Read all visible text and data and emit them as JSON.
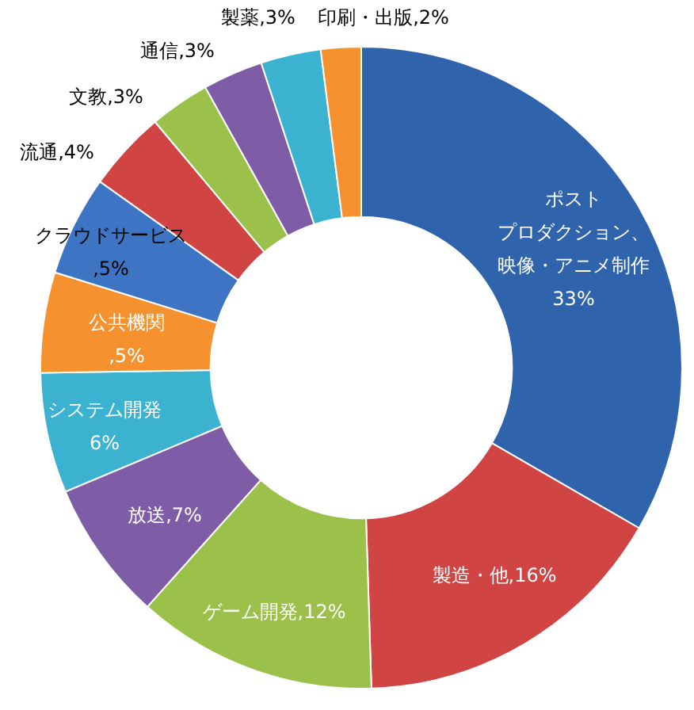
{
  "chart_data": {
    "type": "donut",
    "categories": [
      "ポストプロダクション、映像・アニメ制作",
      "製造・他",
      "ゲーム開発",
      "放送",
      "システム開発",
      "公共機関",
      "クラウドサービス",
      "流通",
      "文教",
      "通信",
      "製薬",
      "印刷・出版"
    ],
    "values": [
      33,
      16,
      12,
      7,
      6,
      5,
      5,
      4,
      3,
      3,
      3,
      2
    ],
    "value_labels": [
      "33%",
      ",16%",
      ",12%",
      ",7%",
      "6%",
      ",5%",
      ",5%",
      ",4%",
      ",3%",
      ",3%",
      ",3%",
      ",2%"
    ],
    "colors": [
      "#2f64ad",
      "#d04543",
      "#9bc14a",
      "#7e5da6",
      "#3cb2d1",
      "#f5912e",
      "#3d74c4",
      "#d04543",
      "#9bc14a",
      "#7e5da6",
      "#3cb2d1",
      "#f5912e"
    ],
    "legend": false
  }
}
